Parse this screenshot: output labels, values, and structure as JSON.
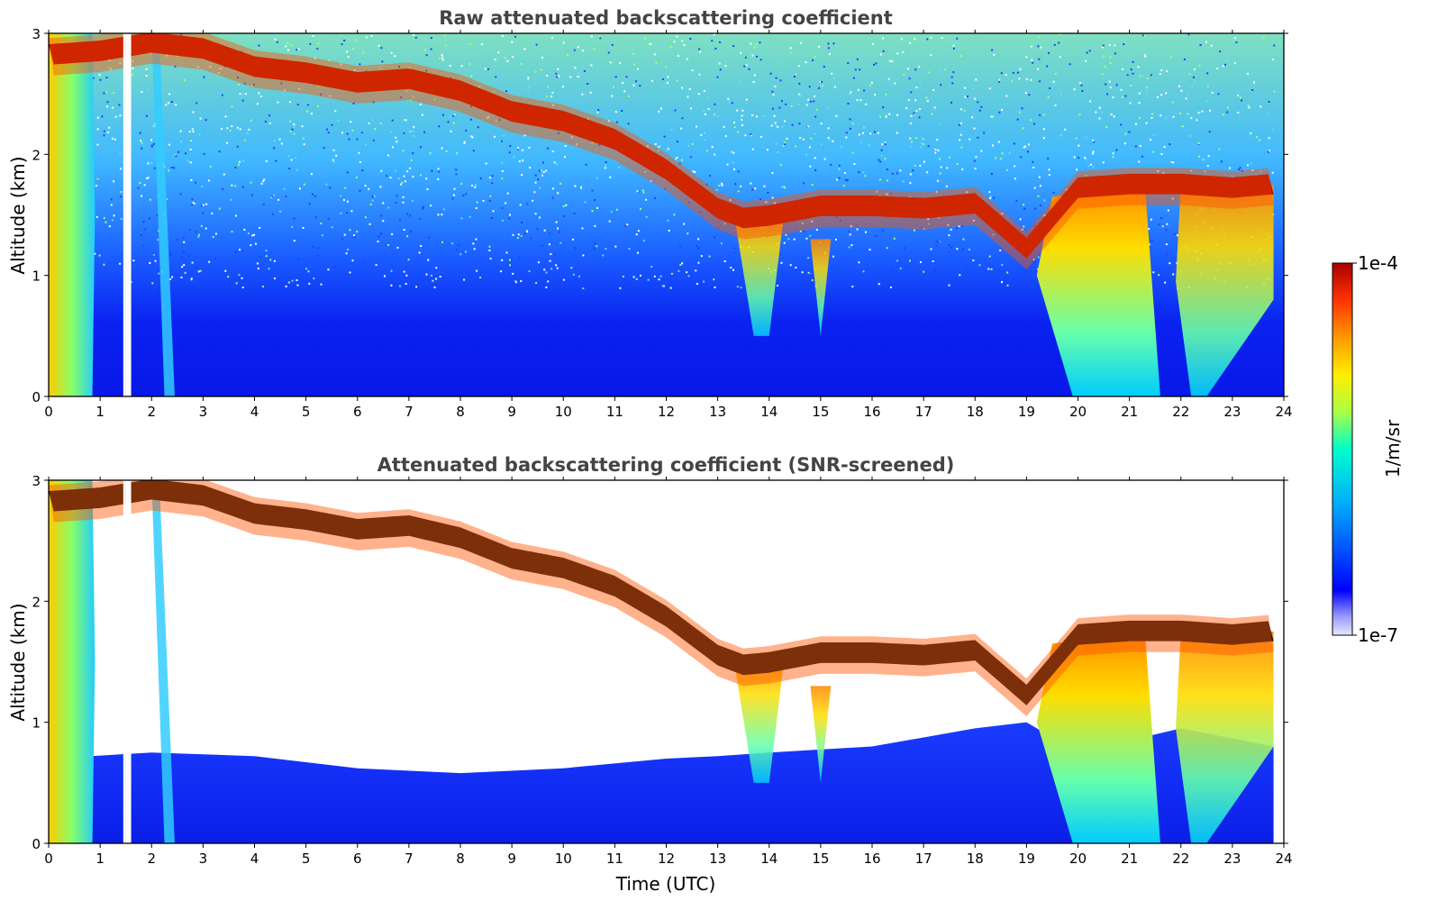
{
  "chart_data": [
    {
      "type": "heatmap",
      "title": "Raw attenuated backscattering coefficient",
      "xlabel": "",
      "ylabel": "Altitude (km)",
      "xlim": [
        0,
        24
      ],
      "ylim": [
        0,
        3
      ],
      "x_ticks": [
        "0",
        "1",
        "2",
        "3",
        "4",
        "5",
        "6",
        "7",
        "8",
        "9",
        "10",
        "11",
        "12",
        "13",
        "14",
        "15",
        "16",
        "17",
        "18",
        "19",
        "20",
        "21",
        "22",
        "23",
        "24"
      ],
      "y_ticks": [
        "0",
        "1",
        "2",
        "3"
      ],
      "colorscale": "jet (log10)",
      "features": {
        "cloud_top_layer_km": [
          [
            0,
            2.85
          ],
          [
            1,
            2.88
          ],
          [
            2,
            2.95
          ],
          [
            3,
            2.9
          ],
          [
            4,
            2.75
          ],
          [
            5,
            2.7
          ],
          [
            6,
            2.62
          ],
          [
            7,
            2.65
          ],
          [
            8,
            2.55
          ],
          [
            9,
            2.38
          ],
          [
            10,
            2.3
          ],
          [
            11,
            2.15
          ],
          [
            12,
            1.9
          ],
          [
            13,
            1.58
          ],
          [
            13.5,
            1.5
          ],
          [
            14,
            1.52
          ],
          [
            15,
            1.6
          ],
          [
            16,
            1.6
          ],
          [
            17,
            1.58
          ],
          [
            18,
            1.62
          ],
          [
            19,
            1.25
          ],
          [
            20,
            1.75
          ],
          [
            21,
            1.78
          ],
          [
            22,
            1.78
          ],
          [
            23,
            1.75
          ],
          [
            23.8,
            1.78
          ]
        ],
        "boundary_layer_top_km": [
          [
            0,
            0.7
          ],
          [
            2,
            0.75
          ],
          [
            4,
            0.72
          ],
          [
            6,
            0.62
          ],
          [
            8,
            0.58
          ],
          [
            10,
            0.62
          ],
          [
            12,
            0.7
          ],
          [
            13,
            0.72
          ],
          [
            14,
            0.75
          ],
          [
            16,
            0.8
          ],
          [
            18,
            0.95
          ],
          [
            19,
            1.0
          ],
          [
            20,
            0.75
          ],
          [
            22,
            0.95
          ],
          [
            23.8,
            0.8
          ]
        ]
      }
    },
    {
      "type": "heatmap",
      "title": "Attenuated backscattering coefficient (SNR-screened)",
      "xlabel": "Time (UTC)",
      "ylabel": "Altitude (km)",
      "xlim": [
        0,
        24
      ],
      "ylim": [
        0,
        3
      ],
      "x_ticks": [
        "0",
        "1",
        "2",
        "3",
        "4",
        "5",
        "6",
        "7",
        "8",
        "9",
        "10",
        "11",
        "12",
        "13",
        "14",
        "15",
        "16",
        "17",
        "18",
        "19",
        "20",
        "21",
        "22",
        "23",
        "24"
      ],
      "y_ticks": [
        "0",
        "1",
        "2",
        "3"
      ],
      "colorscale": "jet (log10)",
      "screened_region": "white above boundary layer where SNR is low"
    }
  ],
  "colorbar": {
    "label": "1/m/sr",
    "max_label": "1e-4",
    "min_label": "1e-7",
    "colors": [
      "#e8e8ff",
      "#0000ff",
      "#00aaff",
      "#00ffcc",
      "#aaff44",
      "#ffee00",
      "#ff9900",
      "#ff3300",
      "#aa0000"
    ]
  }
}
